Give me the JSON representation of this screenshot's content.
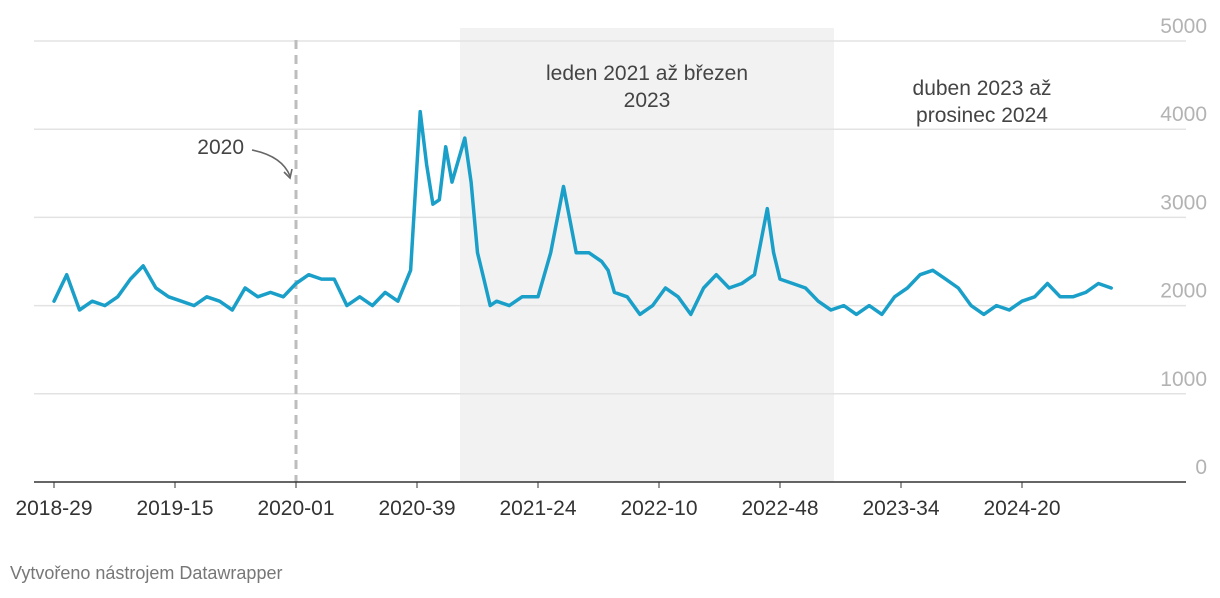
{
  "chart_data": {
    "type": "line",
    "title": "",
    "xlabel": "",
    "ylabel": "",
    "ylim": [
      0,
      5000
    ],
    "y_ticks": [
      "0",
      "1000",
      "2000",
      "3000",
      "4000",
      "5000"
    ],
    "x_ticks": [
      "2018-29",
      "2019-15",
      "2020-01",
      "2020-39",
      "2021-24",
      "2022-10",
      "2022-48",
      "2023-34",
      "2024-20"
    ],
    "grid": true,
    "line_color": "#1a9fc9",
    "shaded_color": "#f2f2f2",
    "marker_line_color": "#bdbdbd",
    "series": [
      {
        "x": [
          "2018-29",
          "2018-33",
          "2018-37",
          "2018-41",
          "2018-45",
          "2018-49",
          "2019-01",
          "2019-05",
          "2019-09",
          "2019-13",
          "2019-17",
          "2019-21",
          "2019-25",
          "2019-29",
          "2019-33",
          "2019-37",
          "2019-41",
          "2019-45",
          "2019-49",
          "2020-01",
          "2020-05",
          "2020-09",
          "2020-13",
          "2020-17",
          "2020-21",
          "2020-25",
          "2020-29",
          "2020-33",
          "2020-37",
          "2020-40",
          "2020-42",
          "2020-44",
          "2020-46",
          "2020-48",
          "2020-50",
          "2021-01",
          "2021-03",
          "2021-05",
          "2021-07",
          "2021-09",
          "2021-11",
          "2021-15",
          "2021-19",
          "2021-24",
          "2021-28",
          "2021-32",
          "2021-36",
          "2021-40",
          "2021-44",
          "2021-46",
          "2021-48",
          "2021-52",
          "2022-04",
          "2022-08",
          "2022-12",
          "2022-16",
          "2022-20",
          "2022-24",
          "2022-28",
          "2022-32",
          "2022-36",
          "2022-40",
          "2022-44",
          "2022-46",
          "2022-48",
          "2022-52",
          "2023-04",
          "2023-08",
          "2023-12",
          "2023-16",
          "2023-20",
          "2023-24",
          "2023-28",
          "2023-32",
          "2023-36",
          "2023-40",
          "2023-44",
          "2023-48",
          "2023-52",
          "2024-04",
          "2024-08",
          "2024-12",
          "2024-16",
          "2024-20",
          "2024-24",
          "2024-28",
          "2024-32",
          "2024-36",
          "2024-40",
          "2024-44",
          "2024-48"
        ],
        "values": [
          2050,
          2350,
          1950,
          2050,
          2000,
          2100,
          2300,
          2450,
          2200,
          2100,
          2050,
          2000,
          2100,
          2050,
          1950,
          2200,
          2100,
          2150,
          2100,
          2250,
          2350,
          2300,
          2300,
          2000,
          2100,
          2000,
          2150,
          2050,
          2400,
          4200,
          3600,
          3150,
          3200,
          3800,
          3400,
          3900,
          3400,
          2600,
          2300,
          2000,
          2050,
          2000,
          2100,
          2100,
          2600,
          3350,
          2600,
          2600,
          2500,
          2400,
          2150,
          2100,
          1900,
          2000,
          2200,
          2100,
          1900,
          2200,
          2350,
          2200,
          2250,
          2350,
          3100,
          2600,
          2300,
          2250,
          2200,
          2050,
          1950,
          2000,
          1900,
          2000,
          1900,
          2100,
          2200,
          2350,
          2400,
          2300,
          2200,
          2000,
          1900,
          2000,
          1950,
          2050,
          2100,
          2250,
          2100,
          2100,
          2150,
          2250,
          2200
        ]
      }
    ],
    "annotations": {
      "shaded_label_line1": "leden 2021 až březen",
      "shaded_label_line2": "2023",
      "right_label_line1": "duben 2023 až",
      "right_label_line2": "prosinec 2024",
      "marker_label": "2020"
    }
  },
  "footer": "Vytvořeno nástrojem Datawrapper"
}
